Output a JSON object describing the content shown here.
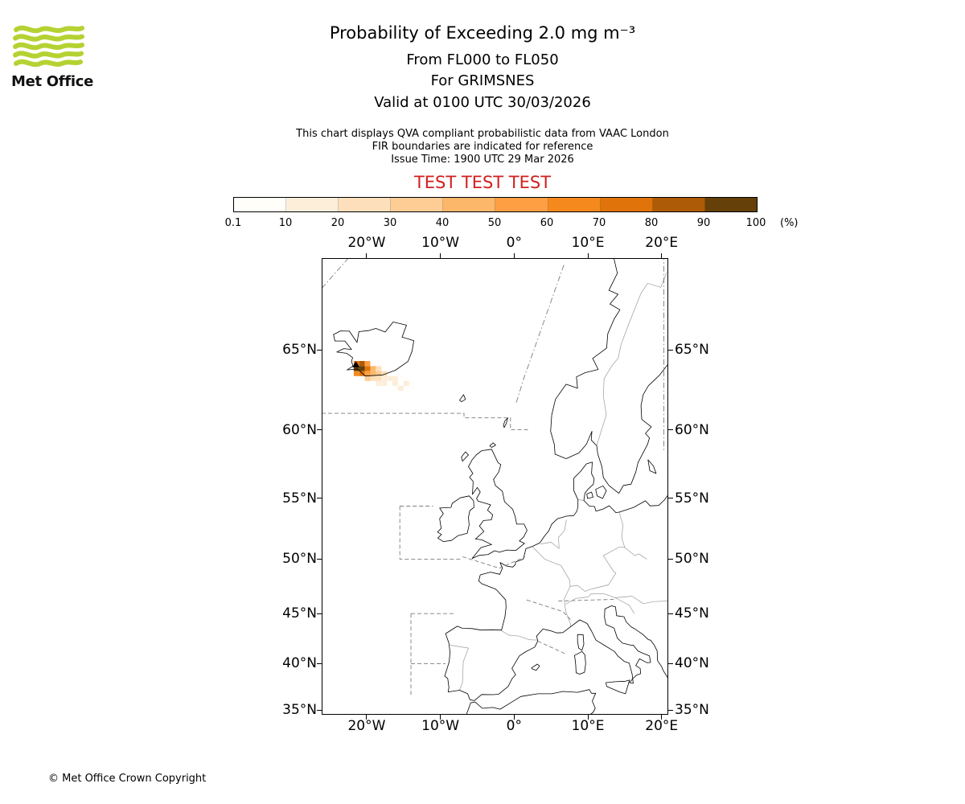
{
  "header": {
    "logo_text": "Met Office",
    "title": "Probability of Exceeding 2.0 mg m⁻³",
    "subtitle_levels": "From FL000 to FL050",
    "subtitle_volcano": "For GRIMSNES",
    "subtitle_valid": "Valid at 0100 UTC 30/03/2026",
    "note_qva": "This chart displays QVA compliant probabilistic data from VAAC London",
    "note_fir": "FIR boundaries are indicated for reference",
    "note_issue": "Issue Time: 1900 UTC 29 Mar 2026",
    "test_banner": "TEST TEST TEST"
  },
  "colorbar": {
    "tick_labels": [
      "0.1",
      "10",
      "20",
      "30",
      "40",
      "50",
      "60",
      "70",
      "80",
      "90",
      "100"
    ],
    "unit": "(%)",
    "colors": [
      "#fffef9",
      "#fdeeda",
      "#fde0bb",
      "#fdcd95",
      "#fdb76a",
      "#fd9f42",
      "#f5891d",
      "#e0740a",
      "#ad5b06",
      "#654008"
    ]
  },
  "map": {
    "x_ticks": [
      {
        "lon": -20,
        "label": "20°W"
      },
      {
        "lon": -10,
        "label": "10°W"
      },
      {
        "lon": 0,
        "label": "0°"
      },
      {
        "lon": 10,
        "label": "10°E"
      },
      {
        "lon": 20,
        "label": "20°E"
      }
    ],
    "y_ticks": [
      {
        "lat": 65,
        "label": "65°N"
      },
      {
        "lat": 60,
        "label": "60°N"
      },
      {
        "lat": 55,
        "label": "55°N"
      },
      {
        "lat": 50,
        "label": "50°N"
      },
      {
        "lat": 45,
        "label": "45°N"
      },
      {
        "lat": 40,
        "label": "40°N"
      },
      {
        "lat": 35,
        "label": "35°N"
      }
    ],
    "volcano": {
      "lon": -21.45,
      "lat": 64.12
    },
    "cell_size": {
      "dlon": 0.75,
      "dlat": 0.3
    },
    "probability_cells": [
      [
        -21.75,
        64.35,
        7
      ],
      [
        -21.0,
        64.35,
        8
      ],
      [
        -20.25,
        64.35,
        5
      ],
      [
        -21.75,
        64.05,
        9
      ],
      [
        -21.0,
        64.05,
        9
      ],
      [
        -20.25,
        64.05,
        7
      ],
      [
        -19.5,
        64.05,
        4
      ],
      [
        -18.75,
        64.05,
        2
      ],
      [
        -21.75,
        63.75,
        6
      ],
      [
        -21.0,
        63.75,
        7
      ],
      [
        -20.25,
        63.75,
        5
      ],
      [
        -19.5,
        63.75,
        4
      ],
      [
        -18.75,
        63.75,
        3
      ],
      [
        -18.0,
        63.75,
        2
      ],
      [
        -20.25,
        63.45,
        3
      ],
      [
        -19.5,
        63.45,
        2
      ],
      [
        -18.75,
        63.45,
        2
      ],
      [
        -18.0,
        63.45,
        1
      ],
      [
        -17.25,
        63.45,
        1
      ],
      [
        -16.5,
        63.45,
        1
      ],
      [
        -15.75,
        63.45,
        0
      ],
      [
        -18.75,
        63.15,
        1
      ],
      [
        -18.0,
        63.15,
        1
      ],
      [
        -17.25,
        63.15,
        0
      ],
      [
        -16.5,
        63.15,
        1
      ],
      [
        -15.0,
        63.15,
        1
      ],
      [
        -14.25,
        63.15,
        0
      ],
      [
        -16.5,
        62.85,
        0
      ],
      [
        -15.75,
        62.85,
        1
      ],
      [
        -14.25,
        62.85,
        0
      ]
    ]
  },
  "footer": {
    "copyright": "© Met Office Crown Copyright"
  }
}
